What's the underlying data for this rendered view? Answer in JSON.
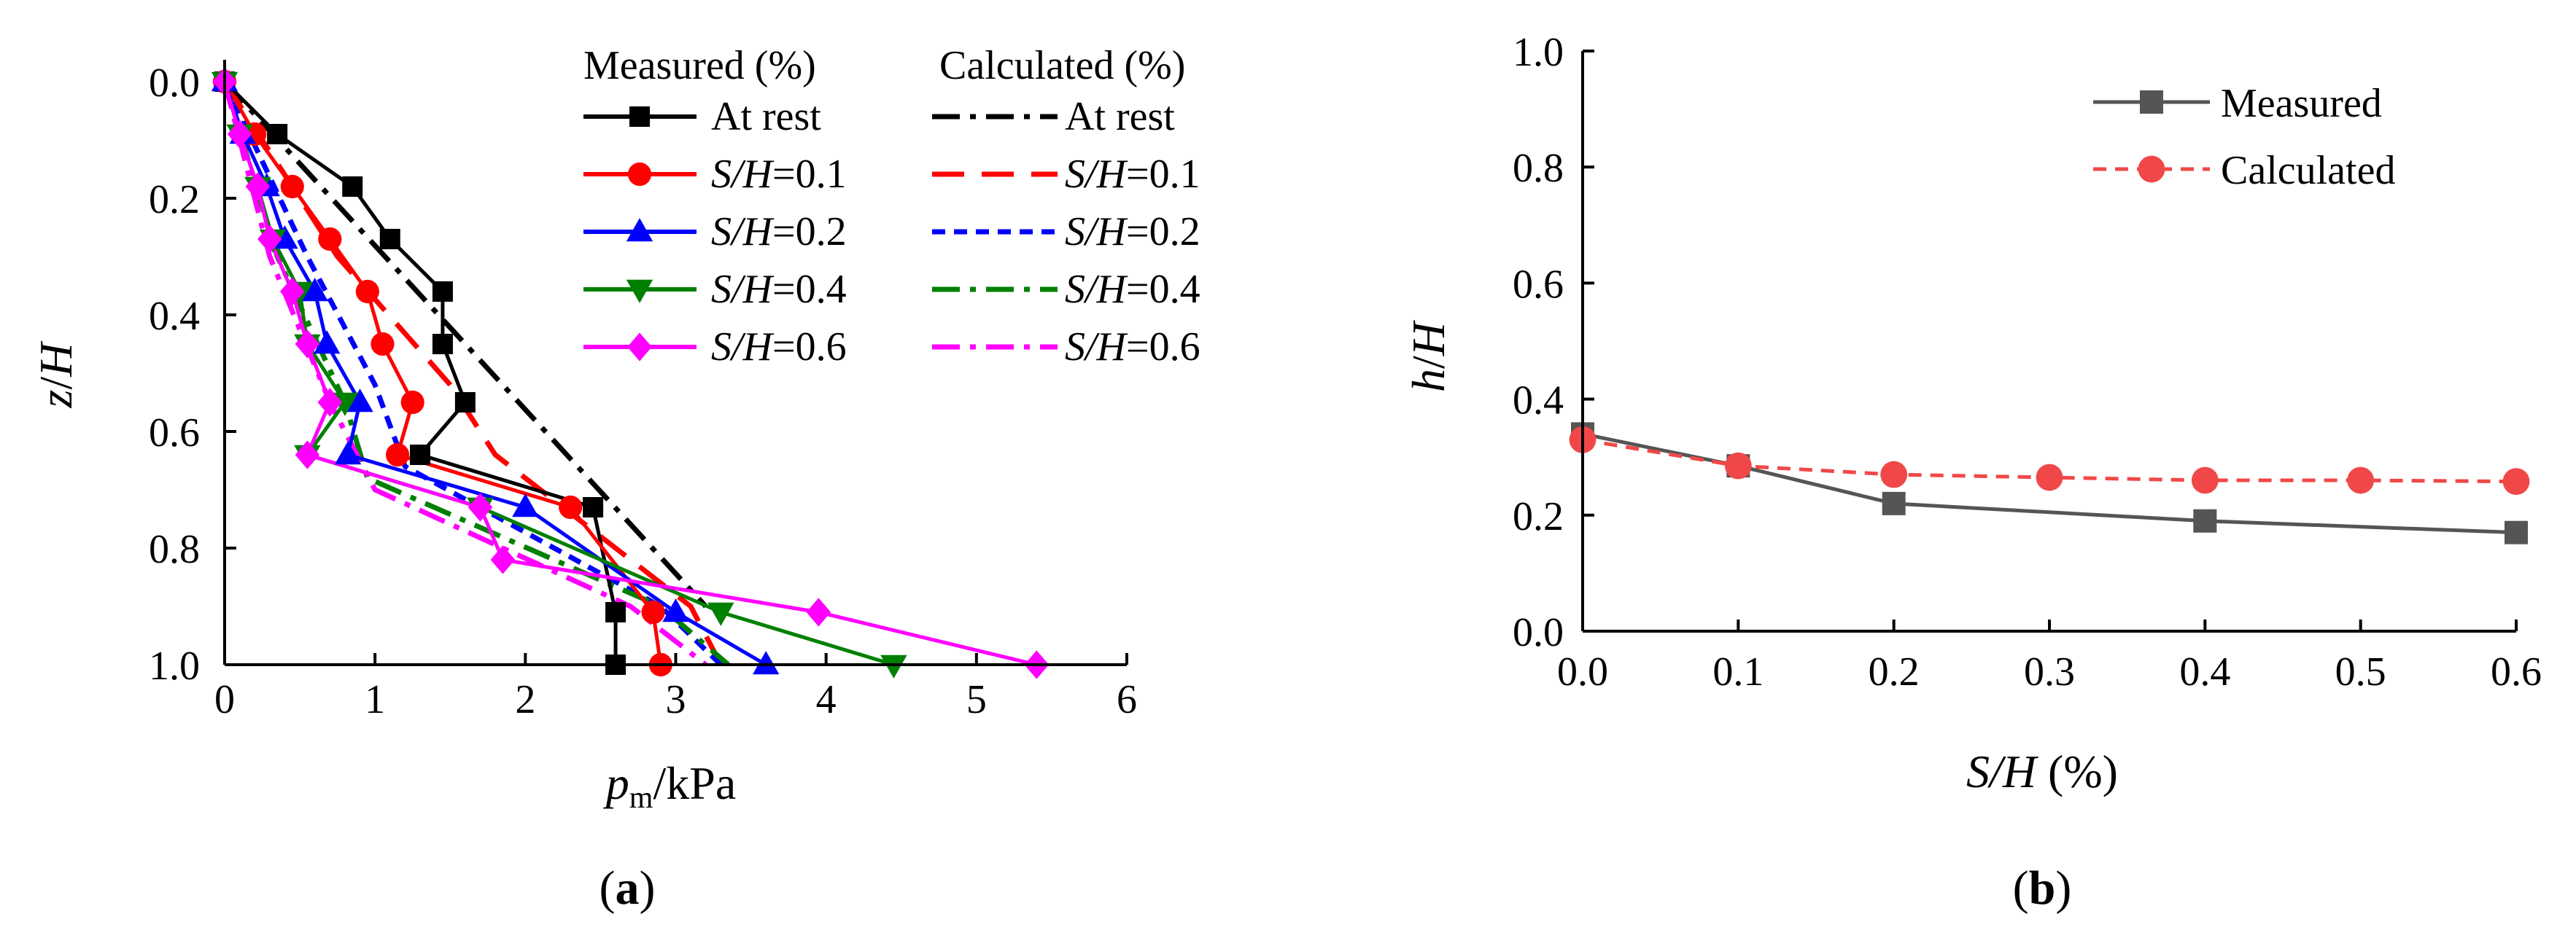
{
  "chart_data": [
    {
      "type": "line",
      "panel_label_open": "(",
      "panel_label_letter": "a",
      "panel_label_close": ")",
      "xlabel_var": "p",
      "xlabel_sub": "m",
      "xlabel_rest": "/kPa",
      "ylabel_var1": "z",
      "ylabel_rest": "/",
      "ylabel_var2": "H",
      "xlim": [
        0,
        6
      ],
      "ylim": [
        0.0,
        1.0
      ],
      "y_inverted": true,
      "xticks": [
        "0",
        "1",
        "2",
        "3",
        "4",
        "5",
        "6"
      ],
      "yticks": [
        "0.0",
        "0.2",
        "0.4",
        "0.6",
        "0.8",
        "1.0"
      ],
      "legend": {
        "heading_measured": "Measured (%)",
        "heading_calculated": "Calculated (%)",
        "entries": [
          {
            "prefix": "",
            "var": "",
            "suffix": "At rest"
          },
          {
            "prefix": "",
            "var": "S/H",
            "suffix": "=0.1"
          },
          {
            "prefix": "",
            "var": "S/H",
            "suffix": "=0.2"
          },
          {
            "prefix": "",
            "var": "S/H",
            "suffix": "=0.4"
          },
          {
            "prefix": "",
            "var": "S/H",
            "suffix": "=0.6"
          }
        ]
      },
      "series": [
        {
          "name": "Measured At rest",
          "group": "measured",
          "color": "#000000",
          "marker": "square",
          "x": [
            0.0,
            0.35,
            0.85,
            1.1,
            1.45,
            1.45,
            1.6,
            1.3,
            2.45,
            2.6,
            2.6
          ],
          "y": [
            0.0,
            0.09,
            0.18,
            0.27,
            0.36,
            0.45,
            0.55,
            0.64,
            0.73,
            0.91,
            1.0
          ]
        },
        {
          "name": "Measured S/H=0.1",
          "group": "measured",
          "color": "#ff0000",
          "marker": "circle",
          "x": [
            0.0,
            0.2,
            0.45,
            0.7,
            0.95,
            1.05,
            1.25,
            1.15,
            2.3,
            2.85,
            2.9
          ],
          "y": [
            0.0,
            0.09,
            0.18,
            0.27,
            0.36,
            0.45,
            0.55,
            0.64,
            0.73,
            0.91,
            1.0
          ]
        },
        {
          "name": "Measured S/H=0.2",
          "group": "measured",
          "color": "#0000ff",
          "marker": "triangle-up",
          "x": [
            0.0,
            0.12,
            0.28,
            0.4,
            0.6,
            0.68,
            0.9,
            0.82,
            2.0,
            3.0,
            3.6
          ],
          "y": [
            0.0,
            0.09,
            0.18,
            0.27,
            0.36,
            0.45,
            0.55,
            0.64,
            0.73,
            0.91,
            1.0
          ]
        },
        {
          "name": "Measured S/H=0.4",
          "group": "measured",
          "color": "#008000",
          "marker": "triangle-down",
          "x": [
            0.0,
            0.1,
            0.22,
            0.32,
            0.5,
            0.55,
            0.8,
            0.55,
            1.7,
            3.3,
            4.45
          ],
          "y": [
            0.0,
            0.09,
            0.18,
            0.27,
            0.36,
            0.45,
            0.55,
            0.64,
            0.73,
            0.91,
            1.0
          ]
        },
        {
          "name": "Measured S/H=0.6",
          "group": "measured",
          "color": "#ff00ff",
          "marker": "diamond",
          "x": [
            0.0,
            0.1,
            0.22,
            0.3,
            0.45,
            0.55,
            0.7,
            0.55,
            1.7,
            1.85,
            3.95,
            5.4
          ],
          "y": [
            0.0,
            0.09,
            0.18,
            0.27,
            0.36,
            0.45,
            0.55,
            0.64,
            0.73,
            0.82,
            0.91,
            1.0
          ]
        },
        {
          "name": "Calculated At rest",
          "group": "calculated",
          "color": "#000000",
          "dash": "dashdot",
          "x": [
            0.0,
            3.2
          ],
          "y": [
            0.0,
            0.9
          ]
        },
        {
          "name": "Calculated S/H=0.1",
          "group": "calculated",
          "color": "#ff0000",
          "dash": "longdash",
          "x": [
            0.0,
            0.75,
            1.5,
            1.8,
            3.1,
            3.3
          ],
          "y": [
            0.0,
            0.3,
            0.52,
            0.64,
            0.9,
            1.0
          ]
        },
        {
          "name": "Calculated S/H=0.2",
          "group": "calculated",
          "color": "#0000ff",
          "dash": "shortdash",
          "x": [
            0.0,
            0.55,
            1.0,
            1.2,
            2.9,
            3.3
          ],
          "y": [
            0.0,
            0.3,
            0.52,
            0.66,
            0.9,
            1.0
          ]
        },
        {
          "name": "Calculated S/H=0.4",
          "group": "calculated",
          "color": "#008000",
          "dash": "dashdot",
          "x": [
            0.0,
            0.35,
            0.8,
            0.95,
            2.9,
            3.35
          ],
          "y": [
            0.0,
            0.3,
            0.55,
            0.68,
            0.9,
            1.0
          ]
        },
        {
          "name": "Calculated S/H=0.6",
          "group": "calculated",
          "color": "#ff00ff",
          "dash": "dashdot",
          "x": [
            0.0,
            0.3,
            0.7,
            1.0,
            2.7,
            3.2
          ],
          "y": [
            0.0,
            0.3,
            0.55,
            0.7,
            0.9,
            1.0
          ]
        }
      ]
    },
    {
      "type": "line",
      "panel_label_open": "(",
      "panel_label_letter": "b",
      "panel_label_close": ")",
      "xlabel_var": "S/H",
      "xlabel_rest": " (%)",
      "ylabel_var1": "h",
      "ylabel_rest": "/",
      "ylabel_var2": "H",
      "xlim": [
        0.0,
        0.6
      ],
      "ylim": [
        0.0,
        1.0
      ],
      "xticks": [
        "0.0",
        "0.1",
        "0.2",
        "0.3",
        "0.4",
        "0.5",
        "0.6"
      ],
      "yticks": [
        "0.0",
        "0.2",
        "0.4",
        "0.6",
        "0.8",
        "1.0"
      ],
      "legend": {
        "entries": [
          "Measured",
          "Calculated"
        ]
      },
      "series": [
        {
          "name": "Measured",
          "color": "#555555",
          "marker": "square",
          "dash": "solid",
          "x": [
            0.0,
            0.1,
            0.2,
            0.4,
            0.6
          ],
          "y": [
            0.34,
            0.285,
            0.22,
            0.19,
            0.17
          ]
        },
        {
          "name": "Calculated",
          "color": "#f04848",
          "marker": "circle",
          "dash": "shortdash",
          "x": [
            0.0,
            0.1,
            0.2,
            0.3,
            0.4,
            0.5,
            0.6
          ],
          "y": [
            0.33,
            0.285,
            0.27,
            0.265,
            0.26,
            0.26,
            0.258
          ]
        }
      ]
    }
  ]
}
